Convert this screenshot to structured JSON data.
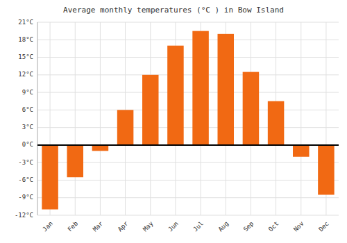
{
  "chart_data": {
    "type": "bar",
    "title": "Average monthly temperatures (°C ) in Bow Island",
    "categories": [
      "Jan",
      "Feb",
      "Mar",
      "Apr",
      "May",
      "Jun",
      "Jul",
      "Aug",
      "Sep",
      "Oct",
      "Nov",
      "Dec"
    ],
    "values": [
      -11,
      -5.5,
      -1,
      6,
      12,
      17,
      19.5,
      19,
      12.5,
      7.5,
      -2,
      -8.5
    ],
    "color": "#f16913",
    "ylim": [
      -12,
      21
    ],
    "yticks": [
      {
        "value": -12,
        "label": "-12°C"
      },
      {
        "value": -9,
        "label": "-9°C"
      },
      {
        "value": -6,
        "label": "-6°C"
      },
      {
        "value": -3,
        "label": "-3°C"
      },
      {
        "value": 0,
        "label": "0°C"
      },
      {
        "value": 3,
        "label": "3°C"
      },
      {
        "value": 6,
        "label": "6°C"
      },
      {
        "value": 9,
        "label": "9°C"
      },
      {
        "value": 12,
        "label": "12°C"
      },
      {
        "value": 15,
        "label": "15°C"
      },
      {
        "value": 18,
        "label": "18°C"
      },
      {
        "value": 21,
        "label": "21°C"
      }
    ],
    "grid": true
  }
}
